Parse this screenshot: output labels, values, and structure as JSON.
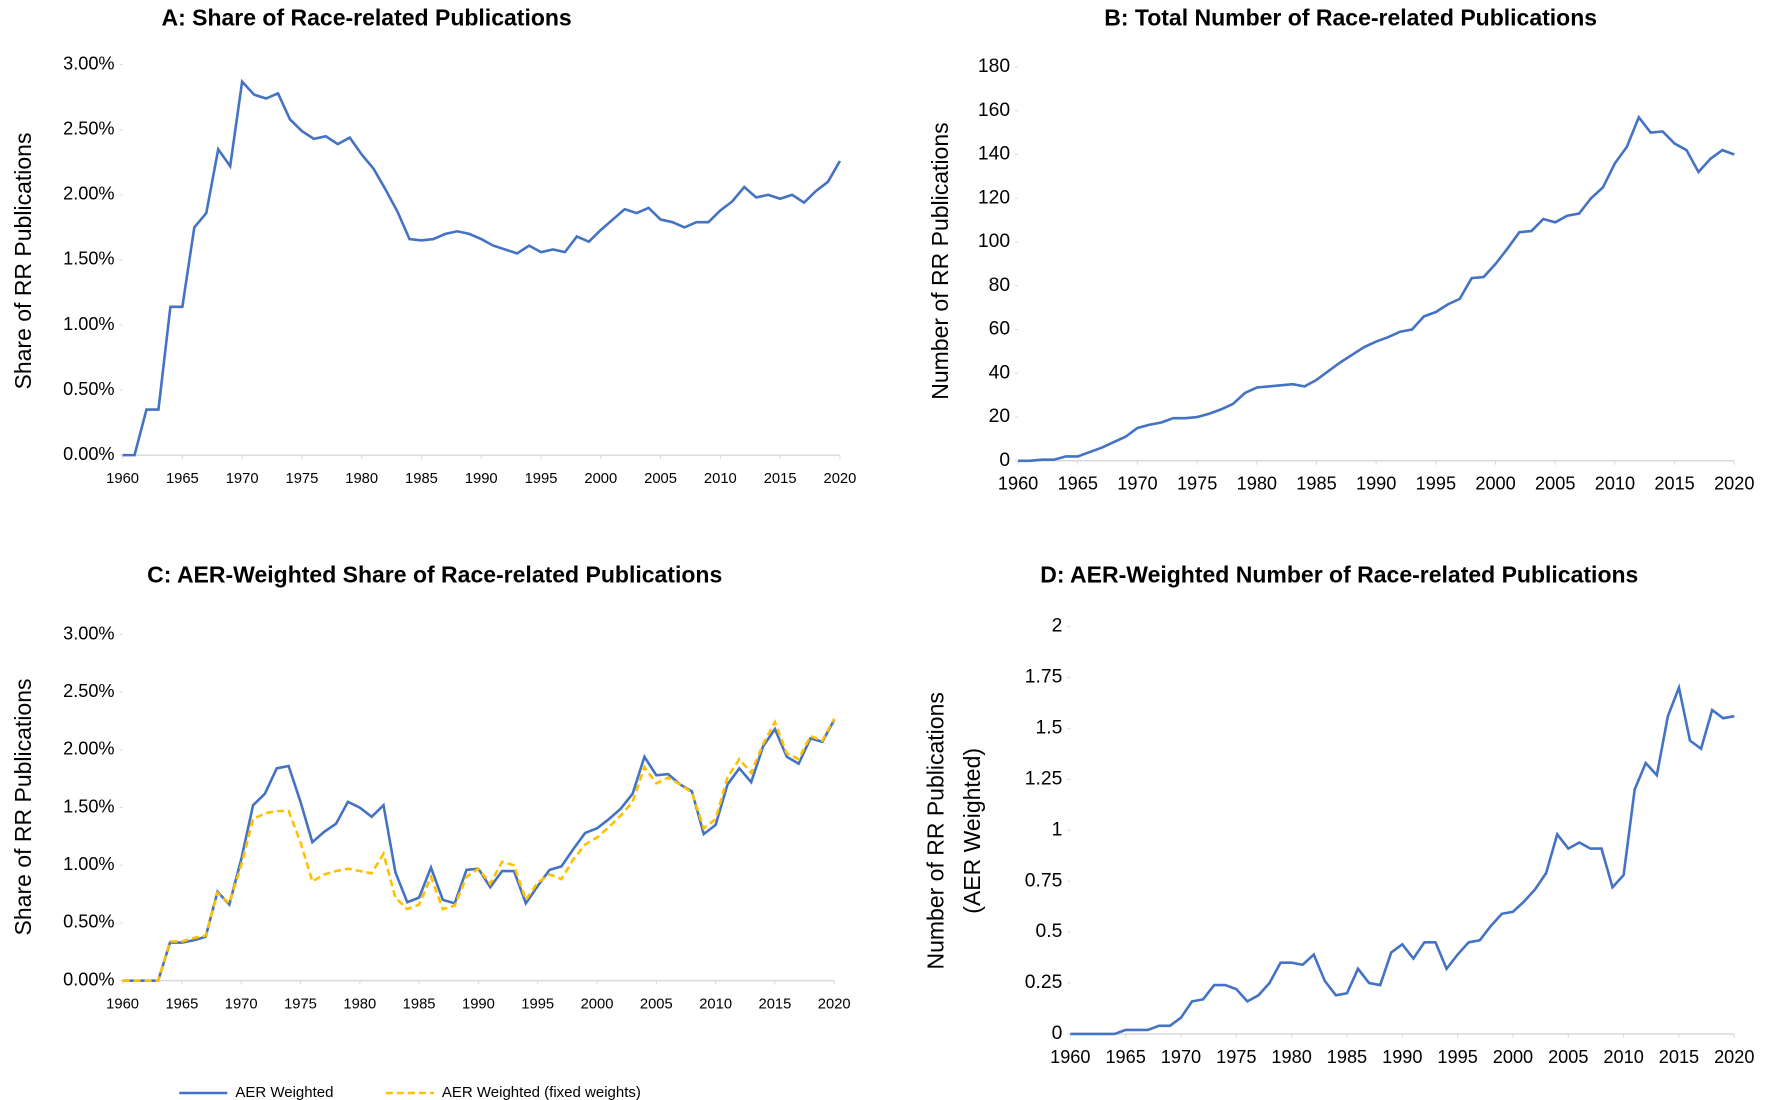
{
  "chart_data": [
    {
      "type": "line",
      "title": "A: Share of Race-related Publications",
      "ylabel": [
        "Share of RR Publications"
      ],
      "color": "#4472c4",
      "x": [
        1960,
        1961,
        1962,
        1963,
        1964,
        1965,
        1966,
        1967,
        1968,
        1969,
        1970,
        1971,
        1972,
        1973,
        1974,
        1975,
        1976,
        1977,
        1978,
        1979,
        1980,
        1981,
        1982,
        1983,
        1984,
        1985,
        1986,
        1987,
        1988,
        1989,
        1990,
        1991,
        1992,
        1993,
        1994,
        1995,
        1996,
        1997,
        1998,
        1999,
        2000,
        2001,
        2002,
        2003,
        2004,
        2005,
        2006,
        2007,
        2008,
        2009,
        2010,
        2011,
        2012,
        2013,
        2014,
        2015,
        2016,
        2017,
        2018,
        2019,
        2020
      ],
      "values": [
        0,
        0,
        0.35,
        0.35,
        1.14,
        1.14,
        1.75,
        1.86,
        2.35,
        2.22,
        2.87,
        2.77,
        2.74,
        2.78,
        2.58,
        2.49,
        2.43,
        2.45,
        2.39,
        2.44,
        2.31,
        2.2,
        2.04,
        1.87,
        1.66,
        1.65,
        1.66,
        1.7,
        1.72,
        1.7,
        1.66,
        1.61,
        1.58,
        1.55,
        1.61,
        1.56,
        1.58,
        1.56,
        1.68,
        1.64,
        1.73,
        1.81,
        1.89,
        1.86,
        1.9,
        1.81,
        1.79,
        1.75,
        1.79,
        1.79,
        1.88,
        1.95,
        2.06,
        1.98,
        2.0,
        1.97,
        2.0,
        1.94,
        2.03,
        2.1,
        2.26
      ],
      "xlim": [
        1960,
        2020
      ],
      "xticks": [
        1960,
        1965,
        1970,
        1975,
        1980,
        1985,
        1990,
        1995,
        2000,
        2005,
        2010,
        2015,
        2020
      ],
      "ylim": [
        0,
        3
      ],
      "yticks": [
        {
          "value": 0,
          "label": "0.00%"
        },
        {
          "value": 0.5,
          "label": "0.50%"
        },
        {
          "value": 1,
          "label": "1.00%"
        },
        {
          "value": 1.5,
          "label": "1.50%"
        },
        {
          "value": 2,
          "label": "2.00%"
        },
        {
          "value": 2.5,
          "label": "2.50%"
        },
        {
          "value": 3,
          "label": "3.00%"
        }
      ]
    },
    {
      "type": "line",
      "title": "B: Total Number of Race-related Publications",
      "ylabel": [
        "Number of RR Publications"
      ],
      "color": "#4472c4",
      "x": [
        1960,
        1961,
        1962,
        1963,
        1964,
        1965,
        1966,
        1967,
        1968,
        1969,
        1970,
        1971,
        1972,
        1973,
        1974,
        1975,
        1976,
        1977,
        1978,
        1979,
        1980,
        1981,
        1982,
        1983,
        1984,
        1985,
        1986,
        1987,
        1988,
        1989,
        1990,
        1991,
        1992,
        1993,
        1994,
        1995,
        1996,
        1997,
        1998,
        1999,
        2000,
        2001,
        2002,
        2003,
        2004,
        2005,
        2006,
        2007,
        2008,
        2009,
        2010,
        2011,
        2012,
        2013,
        2014,
        2015,
        2016,
        2017,
        2018,
        2019,
        2020
      ],
      "values": [
        0,
        0,
        0.5,
        0.5,
        2,
        2,
        4,
        6,
        8.5,
        11,
        15,
        16.5,
        17.5,
        19.5,
        19.5,
        20,
        21.5,
        23.5,
        26,
        31,
        33.5,
        34,
        34.5,
        35,
        34,
        37,
        41,
        45,
        48.5,
        52,
        54.5,
        56.5,
        59,
        60,
        66,
        68,
        71.5,
        74,
        83.5,
        84,
        90,
        97,
        104.5,
        105,
        110.5,
        109,
        112,
        113,
        120,
        125,
        136,
        143.5,
        157,
        150,
        150.5,
        145,
        142,
        132,
        138,
        142,
        140
      ],
      "xlim": [
        1960,
        2020
      ],
      "xticks": [
        1960,
        1965,
        1970,
        1975,
        1980,
        1985,
        1990,
        1995,
        2000,
        2005,
        2010,
        2015,
        2020
      ],
      "ylim": [
        0,
        180
      ],
      "yticks": [
        0,
        20,
        40,
        60,
        80,
        100,
        120,
        140,
        160,
        180
      ]
    },
    {
      "type": "line",
      "title": "C: AER-Weighted Share of Race-related Publications",
      "ylabel": [
        "Share of RR Publications"
      ],
      "legend": "bottom",
      "x": [
        1960,
        1961,
        1962,
        1963,
        1964,
        1965,
        1966,
        1967,
        1968,
        1969,
        1970,
        1971,
        1972,
        1973,
        1974,
        1975,
        1976,
        1977,
        1978,
        1979,
        1980,
        1981,
        1982,
        1983,
        1984,
        1985,
        1986,
        1987,
        1988,
        1989,
        1990,
        1991,
        1992,
        1993,
        1994,
        1995,
        1996,
        1997,
        1998,
        1999,
        2000,
        2001,
        2002,
        2003,
        2004,
        2005,
        2006,
        2007,
        2008,
        2009,
        2010,
        2011,
        2012,
        2013,
        2014,
        2015,
        2016,
        2017,
        2018,
        2019,
        2020
      ],
      "series": [
        {
          "name": "AER Weighted",
          "color": "#4472c4",
          "style": "solid",
          "values": [
            0,
            0,
            0,
            0,
            0.33,
            0.33,
            0.35,
            0.38,
            0.77,
            0.66,
            1.05,
            1.52,
            1.62,
            1.84,
            1.86,
            1.55,
            1.2,
            1.29,
            1.36,
            1.55,
            1.5,
            1.42,
            1.52,
            0.94,
            0.68,
            0.72,
            0.98,
            0.7,
            0.67,
            0.96,
            0.97,
            0.81,
            0.95,
            0.95,
            0.67,
            0.82,
            0.96,
            0.99,
            1.14,
            1.28,
            1.32,
            1.4,
            1.49,
            1.62,
            1.94,
            1.78,
            1.79,
            1.7,
            1.64,
            1.27,
            1.35,
            1.7,
            1.84,
            1.72,
            2.03,
            2.18,
            1.94,
            1.88,
            2.1,
            2.07,
            2.26
          ]
        },
        {
          "name": "AER Weighted (fixed weights)",
          "color": "#ffc000",
          "style": "dashed",
          "values": [
            0,
            0,
            0,
            0,
            0.34,
            0.34,
            0.37,
            0.39,
            0.76,
            0.67,
            1.0,
            1.4,
            1.45,
            1.47,
            1.47,
            1.2,
            0.86,
            0.92,
            0.95,
            0.97,
            0.95,
            0.93,
            1.1,
            0.72,
            0.62,
            0.66,
            0.9,
            0.62,
            0.65,
            0.9,
            0.97,
            0.84,
            1.03,
            1.0,
            0.7,
            0.85,
            0.92,
            0.88,
            1.05,
            1.18,
            1.24,
            1.33,
            1.43,
            1.55,
            1.85,
            1.71,
            1.76,
            1.7,
            1.63,
            1.32,
            1.4,
            1.76,
            1.92,
            1.8,
            2.05,
            2.24,
            1.97,
            1.92,
            2.12,
            2.08,
            2.27
          ]
        }
      ],
      "xlim": [
        1960,
        2020
      ],
      "xticks": [
        1960,
        1965,
        1970,
        1975,
        1980,
        1985,
        1990,
        1995,
        2000,
        2005,
        2010,
        2015,
        2020
      ],
      "ylim": [
        0,
        3
      ],
      "yticks": [
        {
          "value": 0,
          "label": "0.00%"
        },
        {
          "value": 0.5,
          "label": "0.50%"
        },
        {
          "value": 1,
          "label": "1.00%"
        },
        {
          "value": 1.5,
          "label": "1.50%"
        },
        {
          "value": 2,
          "label": "2.00%"
        },
        {
          "value": 2.5,
          "label": "2.50%"
        },
        {
          "value": 3,
          "label": "3.00%"
        }
      ]
    },
    {
      "type": "line",
      "title": "D: AER-Weighted Number of Race-related Publications",
      "ylabel": [
        "Number of RR Publications",
        "(AER Weighted)"
      ],
      "color": "#4472c4",
      "x": [
        1960,
        1961,
        1962,
        1963,
        1964,
        1965,
        1966,
        1967,
        1968,
        1969,
        1970,
        1971,
        1972,
        1973,
        1974,
        1975,
        1976,
        1977,
        1978,
        1979,
        1980,
        1981,
        1982,
        1983,
        1984,
        1985,
        1986,
        1987,
        1988,
        1989,
        1990,
        1991,
        1992,
        1993,
        1994,
        1995,
        1996,
        1997,
        1998,
        1999,
        2000,
        2001,
        2002,
        2003,
        2004,
        2005,
        2006,
        2007,
        2008,
        2009,
        2010,
        2011,
        2012,
        2013,
        2014,
        2015,
        2016,
        2017,
        2018,
        2019,
        2020
      ],
      "values": [
        0,
        0,
        0,
        0,
        0,
        0.02,
        0.02,
        0.02,
        0.04,
        0.04,
        0.08,
        0.16,
        0.17,
        0.24,
        0.24,
        0.22,
        0.16,
        0.19,
        0.25,
        0.35,
        0.35,
        0.34,
        0.39,
        0.26,
        0.19,
        0.2,
        0.32,
        0.25,
        0.24,
        0.4,
        0.44,
        0.37,
        0.45,
        0.45,
        0.32,
        0.39,
        0.45,
        0.46,
        0.53,
        0.59,
        0.6,
        0.65,
        0.71,
        0.79,
        0.98,
        0.91,
        0.94,
        0.91,
        0.91,
        0.72,
        0.78,
        1.2,
        1.33,
        1.27,
        1.56,
        1.7,
        1.44,
        1.4,
        1.59,
        1.55,
        1.56
      ],
      "xlim": [
        1960,
        2020
      ],
      "xticks": [
        1960,
        1965,
        1970,
        1975,
        1980,
        1985,
        1990,
        1995,
        2000,
        2005,
        2010,
        2015,
        2020
      ],
      "ylim": [
        0,
        2
      ],
      "yticks": [
        0,
        0.25,
        0.5,
        0.75,
        1,
        1.25,
        1.5,
        1.75,
        2
      ]
    }
  ]
}
